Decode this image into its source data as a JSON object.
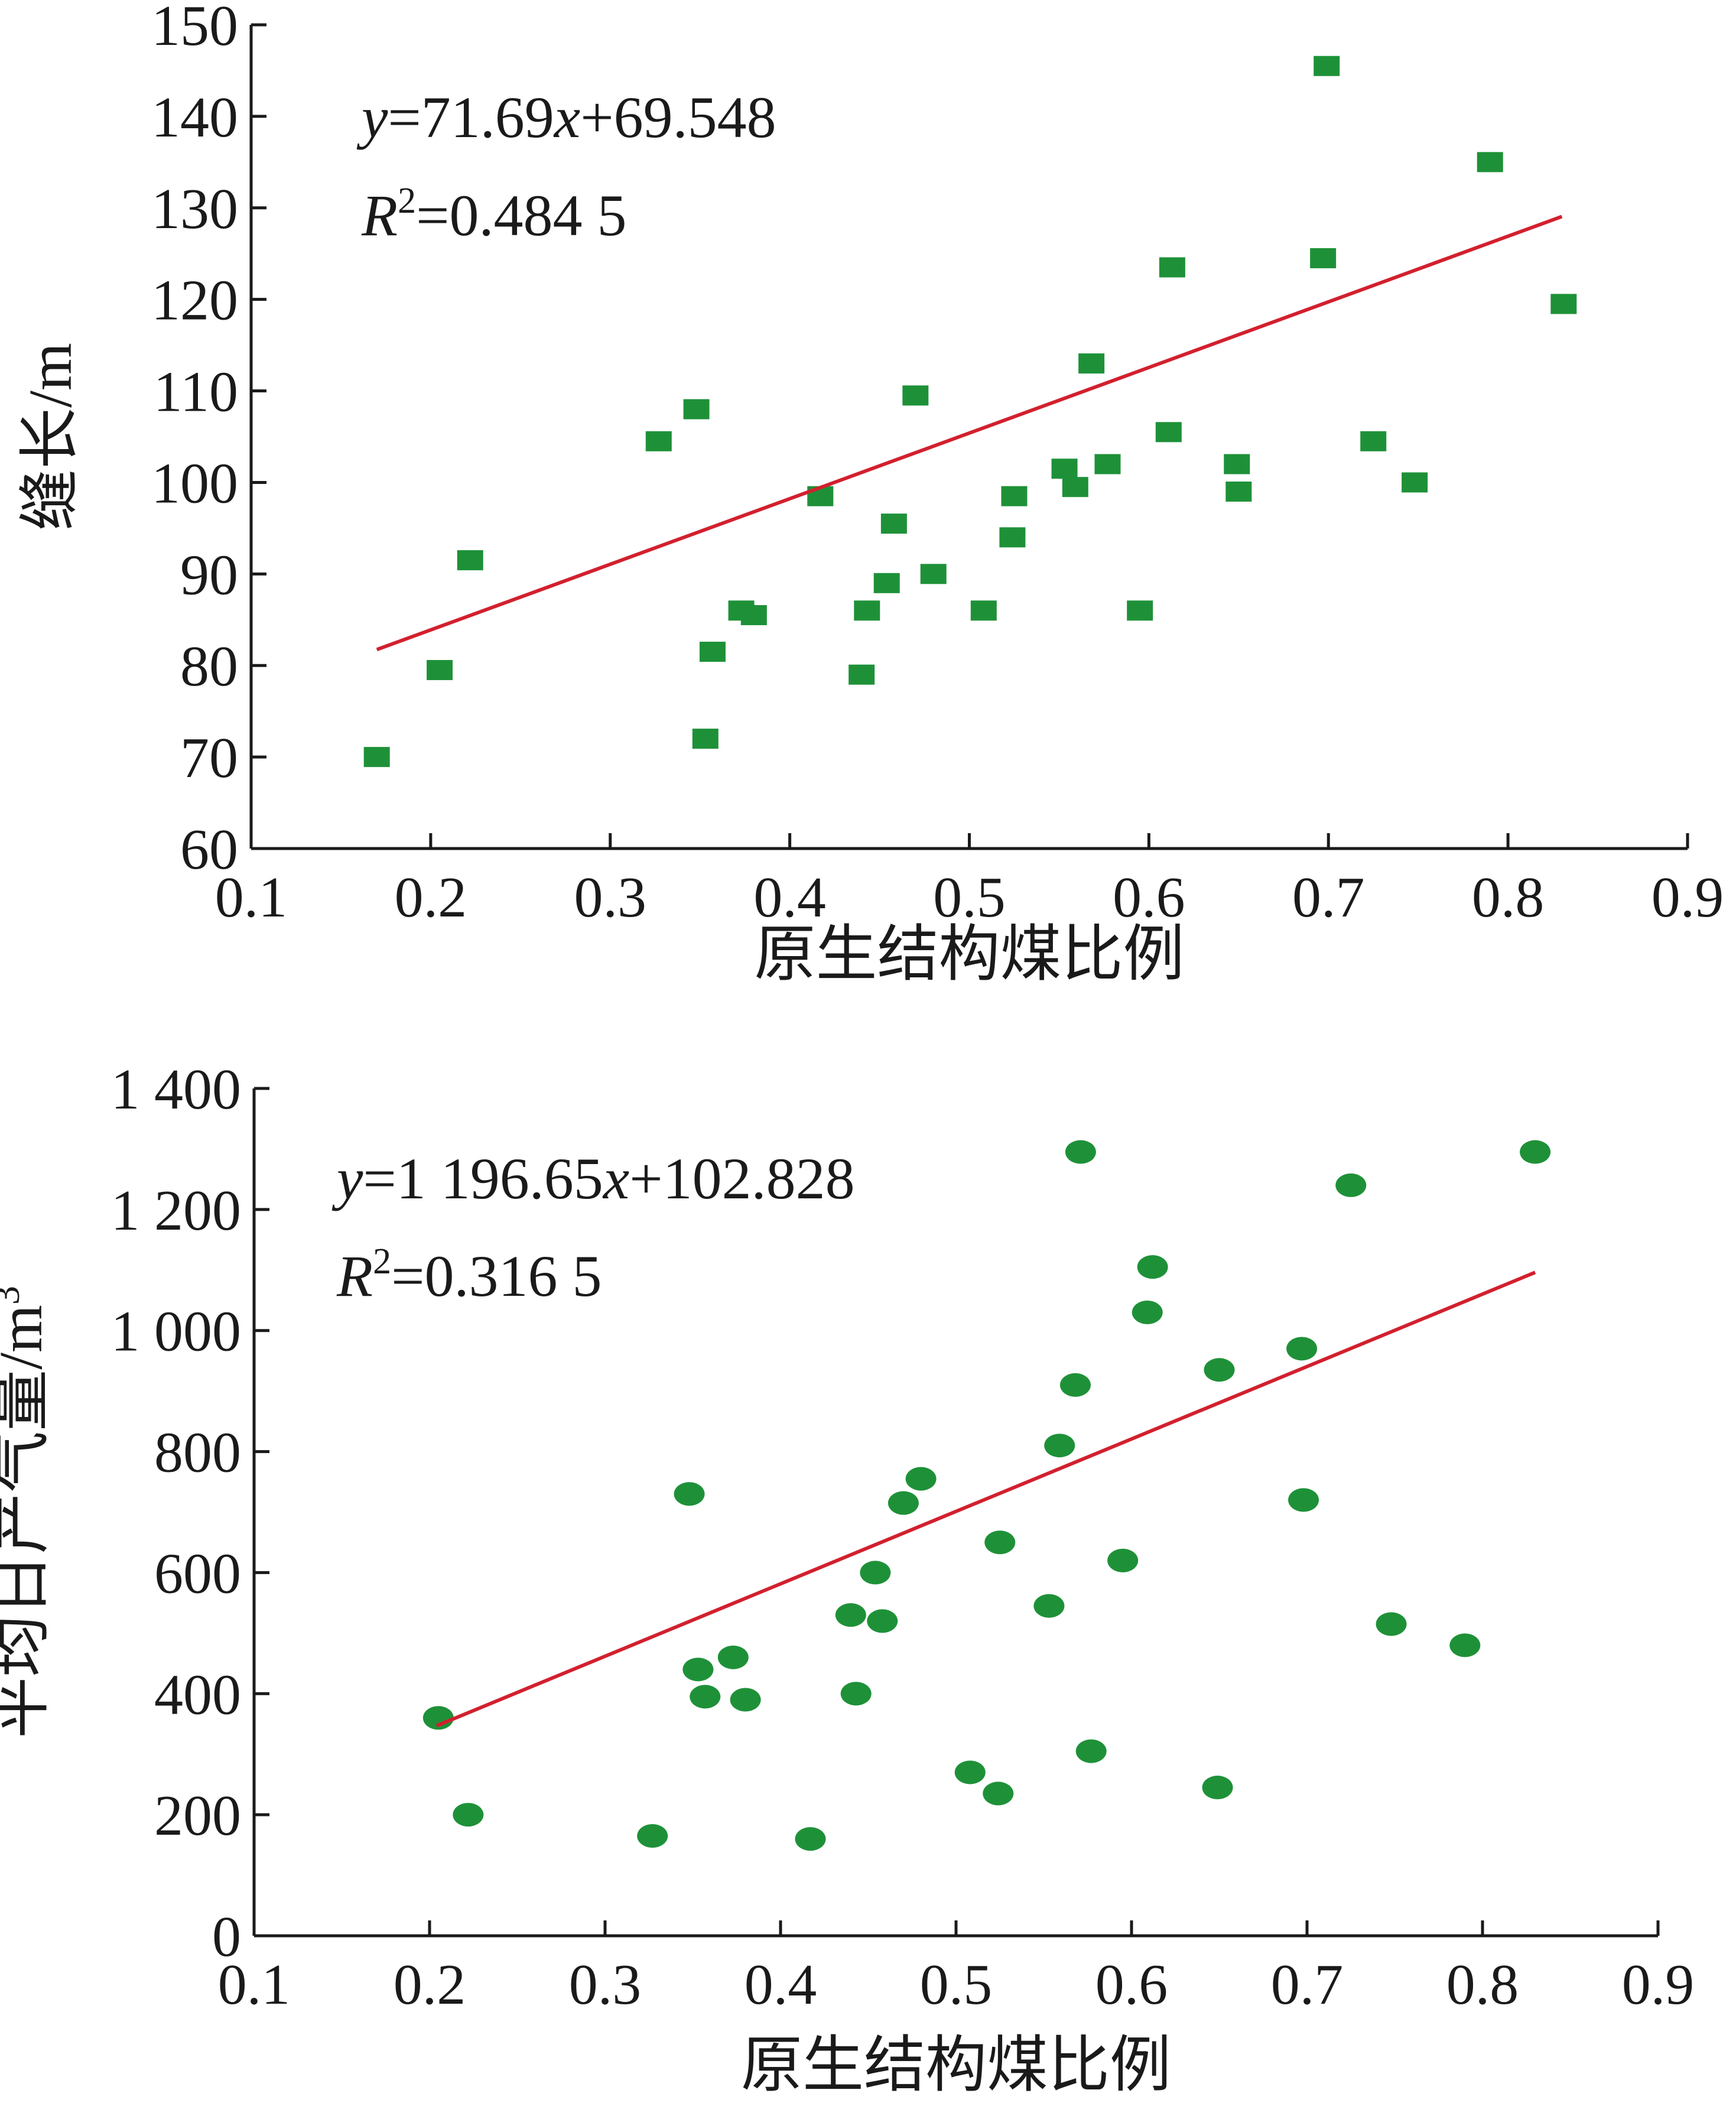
{
  "chart_data": [
    {
      "type": "scatter",
      "xlabel": "原生结构煤比例",
      "ylabel": "缝长/m",
      "xlim": [
        0.1,
        0.9
      ],
      "ylim": [
        60,
        150
      ],
      "x_ticks": [
        "0.1",
        "0.2",
        "0.3",
        "0.4",
        "0.5",
        "0.6",
        "0.7",
        "0.8",
        "0.9"
      ],
      "y_ticks": [
        "60",
        "70",
        "80",
        "90",
        "100",
        "110",
        "120",
        "130",
        "140",
        "150"
      ],
      "marker": "square",
      "marker_color": "#1e9138",
      "trend_color": "#d2202e",
      "equation": {
        "y": "y",
        "mid": "=71.69",
        "x": "x",
        "tail": "+69.548"
      },
      "r_squared": {
        "r": "R",
        "sup": "2",
        "tail": "=0.484 5"
      },
      "trendline": {
        "slope": 71.69,
        "intercept": 69.548,
        "x_range": [
          0.17,
          0.83
        ]
      },
      "points": [
        [
          0.17,
          70
        ],
        [
          0.205,
          79.5
        ],
        [
          0.222,
          91.5
        ],
        [
          0.327,
          104.5
        ],
        [
          0.348,
          108
        ],
        [
          0.353,
          72
        ],
        [
          0.357,
          81.5
        ],
        [
          0.373,
          86
        ],
        [
          0.38,
          85.5
        ],
        [
          0.417,
          98.5
        ],
        [
          0.44,
          79
        ],
        [
          0.443,
          86
        ],
        [
          0.454,
          89
        ],
        [
          0.458,
          95.5
        ],
        [
          0.47,
          109.5
        ],
        [
          0.48,
          90
        ],
        [
          0.508,
          86
        ],
        [
          0.524,
          94
        ],
        [
          0.525,
          98.5
        ],
        [
          0.553,
          101.5
        ],
        [
          0.559,
          99.5
        ],
        [
          0.568,
          113
        ],
        [
          0.577,
          102
        ],
        [
          0.595,
          86
        ],
        [
          0.611,
          105.5
        ],
        [
          0.613,
          123.5
        ],
        [
          0.649,
          102
        ],
        [
          0.65,
          99
        ],
        [
          0.697,
          124.5
        ],
        [
          0.699,
          145.5
        ],
        [
          0.725,
          104.5
        ],
        [
          0.748,
          100
        ],
        [
          0.79,
          135
        ],
        [
          0.831,
          119.5
        ]
      ]
    },
    {
      "type": "scatter",
      "xlabel": "原生结构煤比例",
      "ylabel": "平均日产气量/m",
      "ylabel_sup": "3",
      "xlim": [
        0.1,
        0.9
      ],
      "ylim": [
        0,
        1400
      ],
      "x_ticks": [
        "0.1",
        "0.2",
        "0.3",
        "0.4",
        "0.5",
        "0.6",
        "0.7",
        "0.8",
        "0.9"
      ],
      "y_ticks": [
        "0",
        "200",
        "400",
        "600",
        "800",
        "1 000",
        "1 200",
        "1 400"
      ],
      "marker": "ellipse",
      "marker_color": "#1e9138",
      "trend_color": "#d2202e",
      "equation": {
        "y": "y",
        "mid": "=1 196.65",
        "x": "x",
        "tail": "+102.828"
      },
      "r_squared": {
        "r": "R",
        "sup": "2",
        "tail": "=0.316 5"
      },
      "trendline": {
        "slope": 1196.65,
        "intercept": 102.828,
        "x_range": [
          0.204,
          0.83
        ]
      },
      "points": [
        [
          0.205,
          360
        ],
        [
          0.222,
          200
        ],
        [
          0.327,
          165
        ],
        [
          0.348,
          730
        ],
        [
          0.353,
          440
        ],
        [
          0.357,
          395
        ],
        [
          0.373,
          460
        ],
        [
          0.38,
          390
        ],
        [
          0.417,
          160
        ],
        [
          0.44,
          530
        ],
        [
          0.443,
          400
        ],
        [
          0.454,
          600
        ],
        [
          0.458,
          520
        ],
        [
          0.47,
          715
        ],
        [
          0.48,
          755
        ],
        [
          0.508,
          270
        ],
        [
          0.524,
          235
        ],
        [
          0.525,
          650
        ],
        [
          0.553,
          545
        ],
        [
          0.559,
          810
        ],
        [
          0.568,
          910
        ],
        [
          0.571,
          1295
        ],
        [
          0.577,
          305
        ],
        [
          0.595,
          620
        ],
        [
          0.609,
          1030
        ],
        [
          0.612,
          1105
        ],
        [
          0.649,
          245
        ],
        [
          0.65,
          935
        ],
        [
          0.697,
          970
        ],
        [
          0.698,
          720
        ],
        [
          0.725,
          1240
        ],
        [
          0.748,
          515
        ],
        [
          0.79,
          480
        ],
        [
          0.83,
          1295
        ]
      ]
    }
  ]
}
